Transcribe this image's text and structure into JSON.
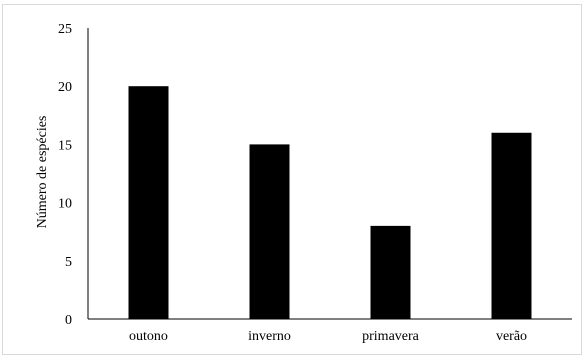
{
  "chart_data": {
    "type": "bar",
    "categories": [
      "outono",
      "inverno",
      "primavera",
      "verão"
    ],
    "values": [
      20,
      15,
      8,
      16
    ],
    "ylabel": "Número de espécies",
    "xlabel": "",
    "ylim": [
      0,
      25
    ],
    "yticks": [
      "0",
      "5",
      "10",
      "15",
      "20",
      "25"
    ],
    "grid": false,
    "bar_color": "#000000",
    "axis_color": "#000000"
  }
}
